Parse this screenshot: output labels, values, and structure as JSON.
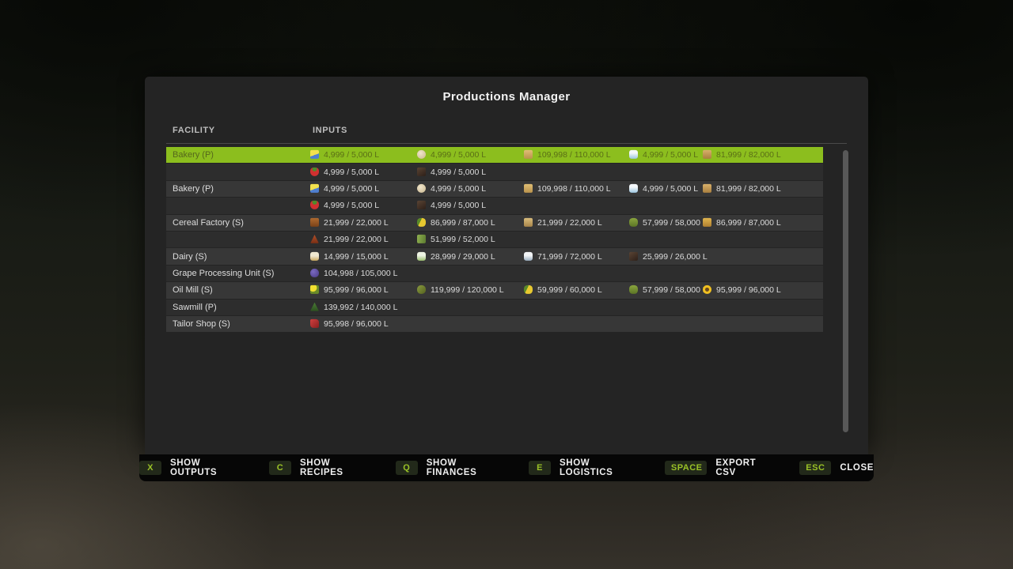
{
  "title": "Productions Manager",
  "table": {
    "headers": {
      "facility": "FACILITY",
      "inputs": "INPUTS"
    },
    "rows": [
      {
        "facility": "Bakery (P)",
        "highlighted": true,
        "cells": [
          {
            "icon": "butter-icon",
            "value": "4,999 / 5,000 L"
          },
          {
            "icon": "egg-icon",
            "value": "4,999 / 5,000 L"
          },
          {
            "icon": "flour-icon",
            "value": "109,998 / 110,000 L"
          },
          {
            "icon": "milk-icon",
            "value": "4,999 / 5,000 L"
          },
          {
            "icon": "sugar-icon",
            "value": "81,999 / 82,000 L"
          }
        ]
      },
      {
        "facility": "",
        "highlighted": false,
        "cells": [
          {
            "icon": "strawberry-icon",
            "value": "4,999 / 5,000 L"
          },
          {
            "icon": "chocolate-icon",
            "value": "4,999 / 5,000 L"
          }
        ]
      },
      {
        "facility": "Bakery (P)",
        "highlighted": false,
        "cells": [
          {
            "icon": "butter-icon",
            "value": "4,999 / 5,000 L"
          },
          {
            "icon": "egg-icon",
            "value": "4,999 / 5,000 L"
          },
          {
            "icon": "flour-icon",
            "value": "109,998 / 110,000 L"
          },
          {
            "icon": "milk-icon",
            "value": "4,999 / 5,000 L"
          },
          {
            "icon": "sugar-icon",
            "value": "81,999 / 82,000 L"
          }
        ]
      },
      {
        "facility": "",
        "highlighted": false,
        "cells": [
          {
            "icon": "strawberry-icon",
            "value": "4,999 / 5,000 L"
          },
          {
            "icon": "chocolate-icon",
            "value": "4,999 / 5,000 L"
          }
        ]
      },
      {
        "facility": "Cereal Factory (S)",
        "highlighted": false,
        "cells": [
          {
            "icon": "barley-icon",
            "value": "21,999 / 22,000 L"
          },
          {
            "icon": "corn-icon",
            "value": "86,999 / 87,000 L"
          },
          {
            "icon": "oats-icon",
            "value": "21,999 / 22,000 L"
          },
          {
            "icon": "soybean-icon",
            "value": "57,999 / 58,000 L"
          },
          {
            "icon": "wheat-icon",
            "value": "86,999 / 87,000 L"
          }
        ]
      },
      {
        "facility": "",
        "highlighted": false,
        "cells": [
          {
            "icon": "sorghum-icon",
            "value": "21,999 / 22,000 L"
          },
          {
            "icon": "rice-icon",
            "value": "51,999 / 52,000 L"
          }
        ]
      },
      {
        "facility": "Dairy (S)",
        "highlighted": false,
        "cells": [
          {
            "icon": "milk-jug-icon",
            "value": "14,999 / 15,000 L"
          },
          {
            "icon": "goat-milk-icon",
            "value": "28,999 / 29,000 L"
          },
          {
            "icon": "buffalo-milk-icon",
            "value": "71,999 / 72,000 L"
          },
          {
            "icon": "chocolate-icon",
            "value": "25,999 / 26,000 L"
          }
        ]
      },
      {
        "facility": "Grape Processing Unit (S)",
        "highlighted": false,
        "cells": [
          {
            "icon": "grapes-icon",
            "value": "104,998 / 105,000 L"
          }
        ]
      },
      {
        "facility": "Oil Mill (S)",
        "highlighted": false,
        "cells": [
          {
            "icon": "canola-icon",
            "value": "95,999 / 96,000 L"
          },
          {
            "icon": "olives-icon",
            "value": "119,999 / 120,000 L"
          },
          {
            "icon": "corn-icon",
            "value": "59,999 / 60,000 L"
          },
          {
            "icon": "soybean-icon",
            "value": "57,999 / 58,000 L"
          },
          {
            "icon": "sunflower-icon",
            "value": "95,999 / 96,000 L"
          }
        ]
      },
      {
        "facility": "Sawmill (P)",
        "highlighted": false,
        "cells": [
          {
            "icon": "wood-icon",
            "value": "139,992 / 140,000 L"
          }
        ]
      },
      {
        "facility": "Tailor Shop (S)",
        "highlighted": false,
        "cells": [
          {
            "icon": "fabric-icon",
            "value": "95,998 / 96,000 L"
          }
        ]
      }
    ]
  },
  "footer": {
    "shortcuts": [
      {
        "key": "X",
        "label": "SHOW OUTPUTS"
      },
      {
        "key": "C",
        "label": "SHOW RECIPES"
      },
      {
        "key": "Q",
        "label": "SHOW FINANCES"
      },
      {
        "key": "E",
        "label": "SHOW LOGISTICS"
      },
      {
        "key": "SPACE",
        "label": "EXPORT CSV"
      },
      {
        "key": "ESC",
        "label": "CLOSE"
      }
    ]
  },
  "colors": {
    "highlight_row": "#8cbe1e",
    "highlight_text": "#5a6e16",
    "row_light": "#373737",
    "row_dark": "#2d2d2d",
    "panel_bg": "#242424",
    "footer_bg": "#060606",
    "key_text": "#9ac226",
    "text": "#dcdcdc"
  }
}
